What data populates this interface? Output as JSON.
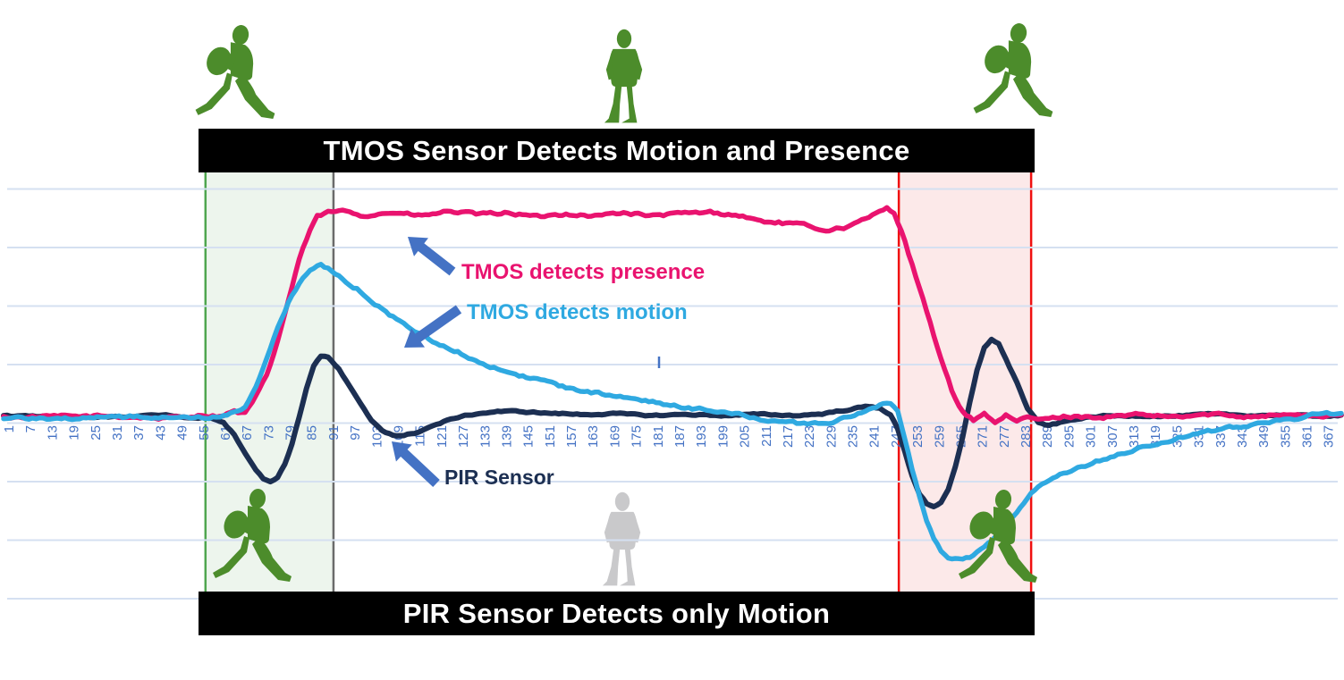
{
  "banners": {
    "top": "TMOS Sensor Detects Motion and Presence",
    "bottom": "PIR Sensor Detects only Motion"
  },
  "annotations": {
    "presence": {
      "label": "TMOS detects presence",
      "color": "#E9136F"
    },
    "motion": {
      "label": "TMOS detects motion",
      "color": "#2FA9E1"
    },
    "pir": {
      "label": "PIR Sensor",
      "color": "#1C2F52"
    }
  },
  "colors": {
    "arrow": "#4472C4",
    "gridline": "#D5E0F1",
    "tick_label": "#4472C4",
    "walking_person": "#4C8C2B",
    "standing_person_top": "#4C8C2B",
    "standing_person_bottom": "#C9C9CB",
    "banner_bg": "#000000",
    "banner_text": "#FFFFFF"
  },
  "chart_data": {
    "type": "line",
    "title": "",
    "xlabel": "",
    "ylabel": "",
    "x_range": [
      0,
      371
    ],
    "y_unit": "normalized sensor signal (no y-axis labels shown in figure)",
    "x_tick_labels": [
      1,
      7,
      13,
      19,
      25,
      31,
      37,
      43,
      49,
      55,
      61,
      67,
      73,
      79,
      85,
      91,
      97,
      103,
      109,
      115,
      121,
      127,
      133,
      139,
      145,
      151,
      157,
      163,
      169,
      175,
      181,
      187,
      193,
      199,
      205,
      211,
      217,
      223,
      229,
      235,
      241,
      247,
      253,
      259,
      265,
      271,
      277,
      283,
      289,
      295,
      301,
      307,
      313,
      319,
      325,
      331,
      337,
      343,
      349,
      355,
      361,
      367
    ],
    "y_gridline_values": [
      3.9,
      2.9,
      1.9,
      0.9,
      -0.1,
      -1.1,
      -2.1,
      -3.1
    ],
    "regions": [
      {
        "name": "entry-window",
        "x_start": 56,
        "x_end": 91.5,
        "fill": "#EDF5ED",
        "border_left": "#4FA64F",
        "border_right": "#6B6B6B"
      },
      {
        "name": "exit-window",
        "x_start": 248.3,
        "x_end": 285,
        "fill": "#FCE9E9",
        "border_left": "#F01010",
        "border_right": "#F01010"
      }
    ],
    "series": [
      {
        "name": "TMOS detects presence",
        "color": "#E9136F",
        "noise": 0.05,
        "keypoints": [
          [
            0,
            0
          ],
          [
            30,
            0.02
          ],
          [
            45,
            -0.02
          ],
          [
            55,
            0.04
          ],
          [
            60,
            0.02
          ],
          [
            64,
            0.1
          ],
          [
            67,
            0.06
          ],
          [
            70,
            0.35
          ],
          [
            73,
            0.7
          ],
          [
            76,
            1.3
          ],
          [
            79,
            2.0
          ],
          [
            82,
            2.7
          ],
          [
            85,
            3.2
          ],
          [
            87,
            3.42
          ],
          [
            90,
            3.5
          ],
          [
            95,
            3.52
          ],
          [
            100,
            3.45
          ],
          [
            108,
            3.5
          ],
          [
            116,
            3.44
          ],
          [
            124,
            3.52
          ],
          [
            132,
            3.46
          ],
          [
            140,
            3.5
          ],
          [
            148,
            3.42
          ],
          [
            156,
            3.48
          ],
          [
            164,
            3.44
          ],
          [
            172,
            3.5
          ],
          [
            180,
            3.44
          ],
          [
            188,
            3.48
          ],
          [
            196,
            3.5
          ],
          [
            204,
            3.45
          ],
          [
            210,
            3.35
          ],
          [
            216,
            3.32
          ],
          [
            222,
            3.28
          ],
          [
            228,
            3.2
          ],
          [
            234,
            3.25
          ],
          [
            240,
            3.4
          ],
          [
            245,
            3.6
          ],
          [
            247,
            3.5
          ],
          [
            249,
            3.2
          ],
          [
            251,
            2.8
          ],
          [
            253,
            2.4
          ],
          [
            255,
            2.0
          ],
          [
            257,
            1.6
          ],
          [
            259,
            1.2
          ],
          [
            261,
            0.8
          ],
          [
            263,
            0.45
          ],
          [
            265,
            0.2
          ],
          [
            267,
            0.05
          ],
          [
            269,
            -0.05
          ],
          [
            272,
            0.08
          ],
          [
            275,
            -0.1
          ],
          [
            278,
            0.02
          ],
          [
            281,
            -0.08
          ],
          [
            284,
            0
          ],
          [
            288,
            -0.04
          ],
          [
            295,
            0.02
          ],
          [
            305,
            0
          ],
          [
            315,
            0.04
          ],
          [
            325,
            0
          ],
          [
            335,
            0.05
          ],
          [
            345,
            0.02
          ],
          [
            355,
            0.05
          ],
          [
            362,
            0.02
          ],
          [
            371,
            0.02
          ]
        ]
      },
      {
        "name": "TMOS detects motion",
        "color": "#2FA9E1",
        "noise": 0.05,
        "keypoints": [
          [
            0,
            -0.02
          ],
          [
            30,
            0
          ],
          [
            45,
            0.02
          ],
          [
            55,
            0
          ],
          [
            60,
            0.02
          ],
          [
            64,
            0.08
          ],
          [
            67,
            0.2
          ],
          [
            70,
            0.5
          ],
          [
            73,
            1.0
          ],
          [
            76,
            1.5
          ],
          [
            79,
            1.95
          ],
          [
            82,
            2.3
          ],
          [
            85,
            2.52
          ],
          [
            88,
            2.6
          ],
          [
            91,
            2.5
          ],
          [
            94,
            2.35
          ],
          [
            98,
            2.2
          ],
          [
            102,
            2.0
          ],
          [
            106,
            1.82
          ],
          [
            110,
            1.62
          ],
          [
            115,
            1.45
          ],
          [
            120,
            1.28
          ],
          [
            126,
            1.12
          ],
          [
            132,
            0.95
          ],
          [
            138,
            0.82
          ],
          [
            144,
            0.7
          ],
          [
            150,
            0.6
          ],
          [
            157,
            0.5
          ],
          [
            164,
            0.42
          ],
          [
            171,
            0.34
          ],
          [
            178,
            0.27
          ],
          [
            185,
            0.21
          ],
          [
            192,
            0.15
          ],
          [
            200,
            0.08
          ],
          [
            208,
            0
          ],
          [
            215,
            -0.08
          ],
          [
            222,
            -0.12
          ],
          [
            228,
            -0.1
          ],
          [
            233,
            -0.02
          ],
          [
            238,
            0.1
          ],
          [
            243,
            0.2
          ],
          [
            246,
            0.22
          ],
          [
            248,
            0.1
          ],
          [
            250,
            -0.4
          ],
          [
            252,
            -0.9
          ],
          [
            254,
            -1.35
          ],
          [
            256,
            -1.75
          ],
          [
            258,
            -2.05
          ],
          [
            260,
            -2.3
          ],
          [
            262,
            -2.42
          ],
          [
            265,
            -2.45
          ],
          [
            268,
            -2.4
          ],
          [
            271,
            -2.28
          ],
          [
            274,
            -2.1
          ],
          [
            278,
            -1.85
          ],
          [
            282,
            -1.55
          ],
          [
            285,
            -1.32
          ],
          [
            289,
            -1.12
          ],
          [
            293,
            -1.0
          ],
          [
            298,
            -0.88
          ],
          [
            304,
            -0.74
          ],
          [
            310,
            -0.62
          ],
          [
            316,
            -0.52
          ],
          [
            322,
            -0.42
          ],
          [
            328,
            -0.33
          ],
          [
            334,
            -0.25
          ],
          [
            340,
            -0.19
          ],
          [
            346,
            -0.12
          ],
          [
            352,
            -0.06
          ],
          [
            358,
            -0.02
          ],
          [
            364,
            0.04
          ],
          [
            371,
            0.06
          ]
        ]
      },
      {
        "name": "PIR Sensor",
        "color": "#1C2F52",
        "noise": 0.025,
        "keypoints": [
          [
            0,
            0.02
          ],
          [
            30,
            0
          ],
          [
            45,
            0.03
          ],
          [
            55,
            0
          ],
          [
            58,
            -0.02
          ],
          [
            61,
            -0.08
          ],
          [
            64,
            -0.3
          ],
          [
            67,
            -0.6
          ],
          [
            70,
            -0.9
          ],
          [
            72,
            -1.05
          ],
          [
            74,
            -1.1
          ],
          [
            76,
            -1.02
          ],
          [
            78,
            -0.8
          ],
          [
            80,
            -0.45
          ],
          [
            82,
            0
          ],
          [
            84,
            0.5
          ],
          [
            86,
            0.88
          ],
          [
            88,
            1.05
          ],
          [
            90,
            1.02
          ],
          [
            93,
            0.82
          ],
          [
            96,
            0.52
          ],
          [
            99,
            0.22
          ],
          [
            102,
            -0.05
          ],
          [
            105,
            -0.22
          ],
          [
            108,
            -0.3
          ],
          [
            111,
            -0.32
          ],
          [
            114,
            -0.27
          ],
          [
            118,
            -0.17
          ],
          [
            122,
            -0.08
          ],
          [
            126,
            0
          ],
          [
            131,
            0.06
          ],
          [
            137,
            0.1
          ],
          [
            143,
            0.1
          ],
          [
            151,
            0.07
          ],
          [
            160,
            0.05
          ],
          [
            170,
            0.06
          ],
          [
            180,
            0.03
          ],
          [
            190,
            0.05
          ],
          [
            200,
            0.03
          ],
          [
            210,
            0.05
          ],
          [
            220,
            0.03
          ],
          [
            227,
            0.06
          ],
          [
            233,
            0.12
          ],
          [
            239,
            0.18
          ],
          [
            243,
            0.16
          ],
          [
            246,
            0.05
          ],
          [
            248,
            -0.2
          ],
          [
            250,
            -0.6
          ],
          [
            252,
            -1.0
          ],
          [
            254,
            -1.3
          ],
          [
            256,
            -1.47
          ],
          [
            258,
            -1.52
          ],
          [
            260,
            -1.45
          ],
          [
            262,
            -1.25
          ],
          [
            264,
            -0.85
          ],
          [
            266,
            -0.35
          ],
          [
            268,
            0.25
          ],
          [
            270,
            0.8
          ],
          [
            272,
            1.2
          ],
          [
            274,
            1.33
          ],
          [
            276,
            1.25
          ],
          [
            278,
            1.0
          ],
          [
            281,
            0.6
          ],
          [
            284,
            0.15
          ],
          [
            287,
            -0.1
          ],
          [
            290,
            -0.14
          ],
          [
            294,
            -0.08
          ],
          [
            298,
            -0.02
          ],
          [
            305,
            0.02
          ],
          [
            315,
            0.03
          ],
          [
            325,
            0.02
          ],
          [
            335,
            0.05
          ],
          [
            345,
            0.03
          ],
          [
            355,
            0.04
          ],
          [
            363,
            0.02
          ],
          [
            371,
            0.03
          ]
        ]
      }
    ],
    "legend_position": "inline-annotations",
    "grid": "horizontal-only"
  }
}
